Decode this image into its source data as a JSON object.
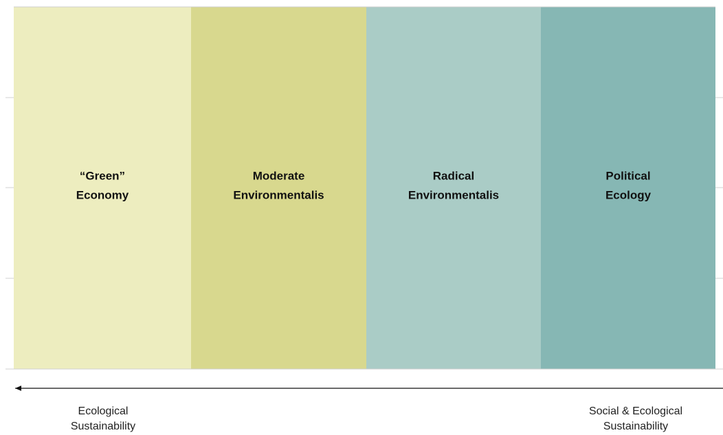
{
  "columns": [
    {
      "lines": [
        "“Green”",
        "Economy"
      ],
      "color": "#ededbf"
    },
    {
      "lines": [
        "Moderate",
        "Environmentalis"
      ],
      "color": "#d8d88e"
    },
    {
      "lines": [
        "Radical",
        "Environmentalis"
      ],
      "color": "#aaccc6"
    },
    {
      "lines": [
        "Political",
        "Ecology"
      ],
      "color": "#86b7b4"
    }
  ],
  "left_label": {
    "lines": [
      "Ecological",
      "Sustainability"
    ]
  },
  "right_label": {
    "lines": [
      "Social & Ecological",
      "Sustainability"
    ]
  }
}
